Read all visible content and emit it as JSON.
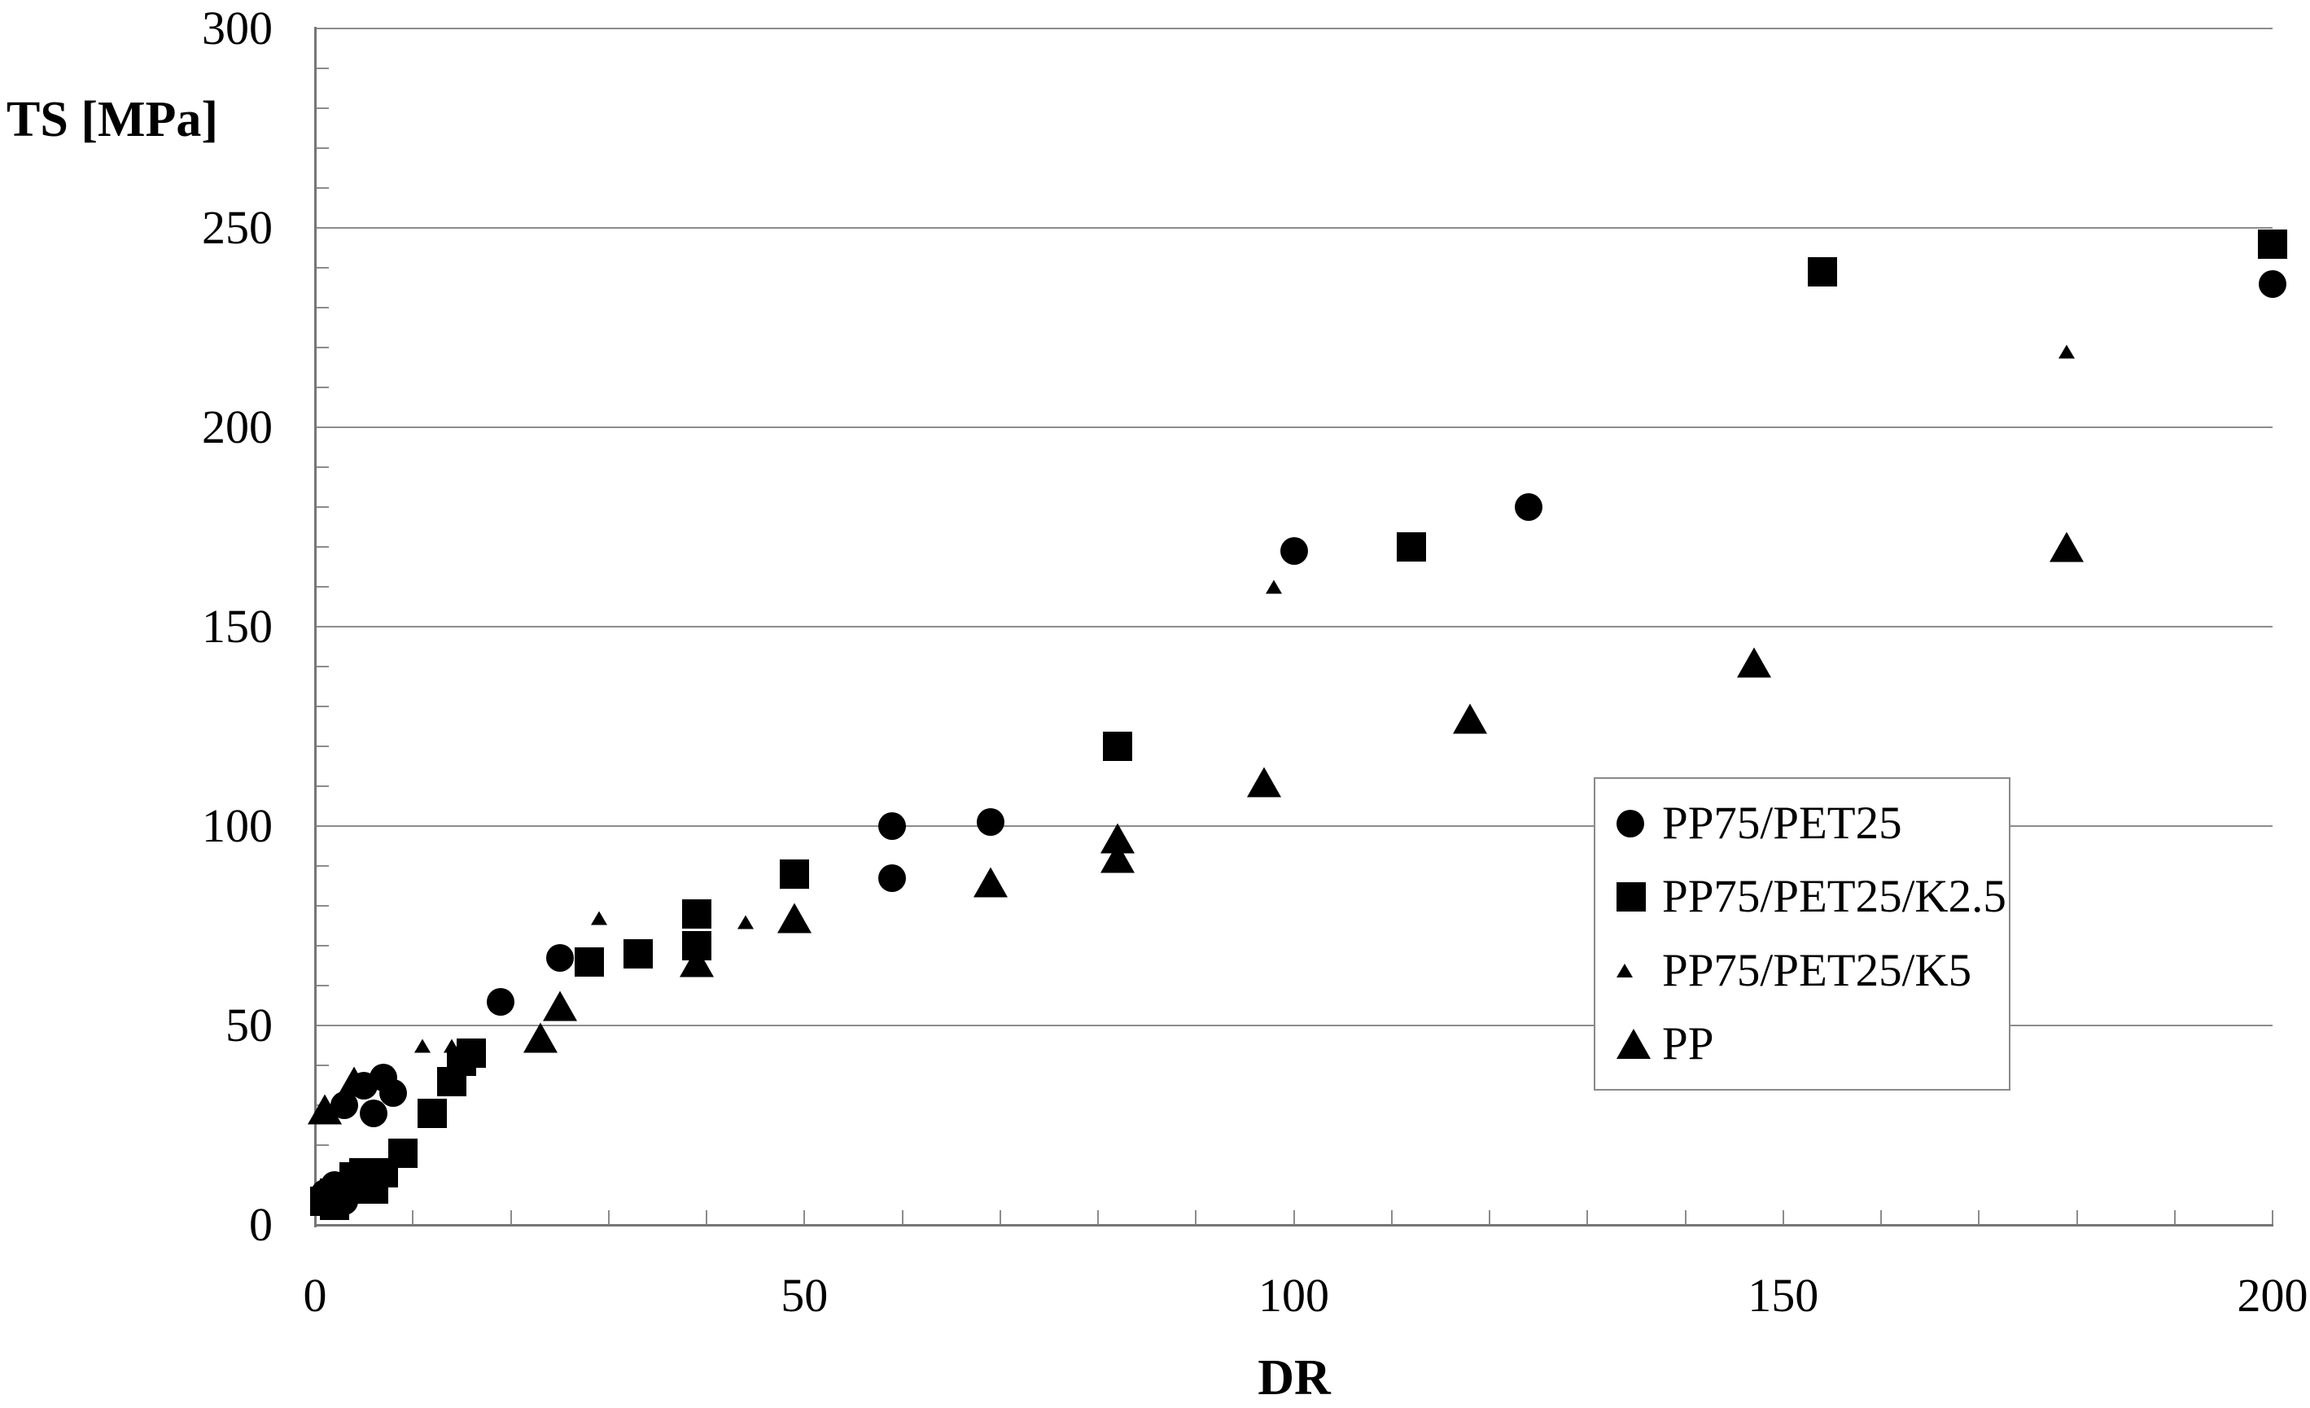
{
  "chart_data": {
    "type": "scatter",
    "title": "",
    "xlabel": "DR",
    "ylabel": "TS [MPa]",
    "xlim": [
      0,
      200
    ],
    "ylim": [
      0,
      300
    ],
    "x_ticks": [
      0,
      50,
      100,
      150,
      200
    ],
    "y_ticks": [
      0,
      50,
      100,
      150,
      200,
      250,
      300
    ],
    "x_minor_tick_step": 10,
    "y_minor_tick_step": 10,
    "grid": "horizontal-major-only",
    "legend_position": "inside-right",
    "series": [
      {
        "name": "PP75/PET25",
        "marker": "circle",
        "points": [
          [
            1,
            8
          ],
          [
            2,
            10
          ],
          [
            3,
            6
          ],
          [
            3,
            30
          ],
          [
            5,
            35
          ],
          [
            6,
            28
          ],
          [
            7,
            37
          ],
          [
            8,
            33
          ],
          [
            19,
            56
          ],
          [
            25,
            67
          ],
          [
            59,
            87
          ],
          [
            59,
            100
          ],
          [
            69,
            101
          ],
          [
            100,
            169
          ],
          [
            124,
            180
          ],
          [
            200,
            236
          ]
        ]
      },
      {
        "name": "PP75/PET25/K2.5",
        "marker": "square",
        "points": [
          [
            1,
            6
          ],
          [
            2,
            5
          ],
          [
            2,
            8
          ],
          [
            3,
            9
          ],
          [
            4,
            12
          ],
          [
            5,
            13
          ],
          [
            6,
            9
          ],
          [
            7,
            13
          ],
          [
            9,
            18
          ],
          [
            12,
            28
          ],
          [
            14,
            36
          ],
          [
            15,
            41
          ],
          [
            16,
            43
          ],
          [
            28,
            66
          ],
          [
            33,
            68
          ],
          [
            39,
            70
          ],
          [
            39,
            78
          ],
          [
            49,
            88
          ],
          [
            82,
            120
          ],
          [
            112,
            170
          ],
          [
            154,
            239
          ],
          [
            200,
            246
          ]
        ]
      },
      {
        "name": "PP75/PET25/K5",
        "marker": "triangle-small",
        "points": [
          [
            11,
            45
          ],
          [
            14,
            45
          ],
          [
            29,
            77
          ],
          [
            44,
            76
          ],
          [
            98,
            160
          ],
          [
            179,
            219
          ]
        ]
      },
      {
        "name": "PP",
        "marker": "triangle-large",
        "points": [
          [
            1,
            29
          ],
          [
            4,
            36
          ],
          [
            23,
            47
          ],
          [
            25,
            55
          ],
          [
            39,
            66
          ],
          [
            49,
            77
          ],
          [
            69,
            86
          ],
          [
            82,
            92
          ],
          [
            82,
            97
          ],
          [
            97,
            111
          ],
          [
            118,
            127
          ],
          [
            147,
            141
          ],
          [
            179,
            170
          ]
        ]
      }
    ]
  },
  "colors": {
    "marker": "#000000",
    "grid": "#8c8c8c",
    "axis": "#767676",
    "legend_border": "#8a8a8a",
    "text": "#000000",
    "background": "#ffffff"
  }
}
